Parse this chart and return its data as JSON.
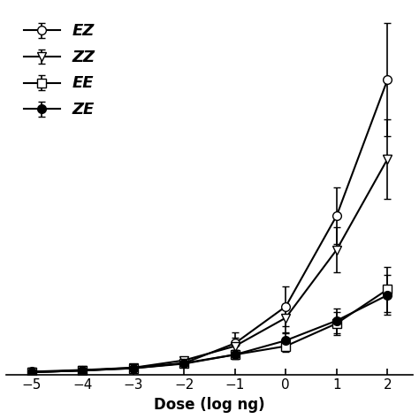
{
  "x": [
    -5,
    -4,
    -3,
    -2,
    -1,
    0,
    1,
    2
  ],
  "EZ_y": [
    0.5,
    0.8,
    1.2,
    2.0,
    5.5,
    12.0,
    28.0,
    52.0
  ],
  "EZ_err": [
    0.3,
    0.4,
    0.5,
    0.6,
    2.0,
    3.5,
    5.0,
    10.0
  ],
  "ZZ_y": [
    0.4,
    0.7,
    1.2,
    2.5,
    5.0,
    10.0,
    22.0,
    38.0
  ],
  "ZZ_err": [
    0.3,
    0.3,
    0.5,
    0.6,
    1.5,
    2.5,
    4.0,
    7.0
  ],
  "EE_y": [
    0.4,
    0.7,
    1.1,
    2.0,
    3.5,
    5.0,
    9.0,
    15.0
  ],
  "EE_err": [
    0.3,
    0.3,
    0.4,
    0.5,
    0.8,
    1.0,
    2.0,
    4.0
  ],
  "ZE_y": [
    0.4,
    0.7,
    1.1,
    1.9,
    3.5,
    6.0,
    9.5,
    14.0
  ],
  "ZE_err": [
    0.3,
    0.3,
    0.4,
    0.5,
    0.8,
    1.2,
    2.2,
    3.5
  ],
  "xlabel": "Dose (log ng)",
  "xlim": [
    -5.5,
    2.5
  ],
  "ylim": [
    0,
    65
  ],
  "xticks": [
    -5,
    -4,
    -3,
    -2,
    -1,
    0,
    1,
    2
  ],
  "legend_labels": [
    "EZ",
    "ZZ",
    "EE",
    "ZE"
  ],
  "background_color": "#ffffff",
  "line_color": "#000000"
}
